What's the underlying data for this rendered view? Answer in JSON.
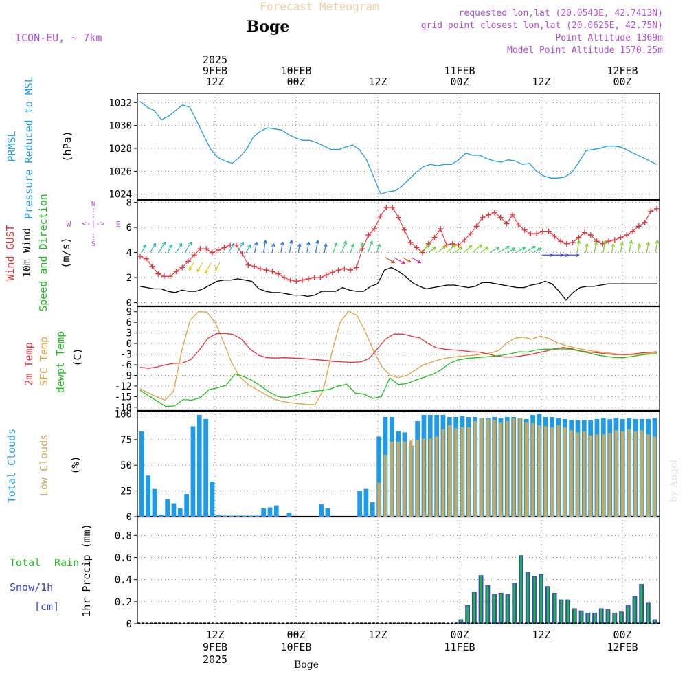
{
  "header": {
    "product_title": "Forecast Meteogram",
    "location": "Boge",
    "model": "ICON-EU, ~ 7km",
    "requested": "requested lon,lat (20.0543E, 42.7413N)",
    "grid_point": "grid point closest lon,lat (20.0625E, 42.75N)",
    "point_altitude": "Point Altitude 1369m",
    "model_altitude": "Model Point Altitude 1570.25m",
    "footer_location": "Boge",
    "watermark": "by Angel"
  },
  "colors": {
    "pressure": "#1e9be8",
    "gust": "#e8303a",
    "wind": "#000000",
    "direction": "#19b919",
    "temp2m": "#e8303a",
    "sfc": "#d9a43c",
    "dewpt": "#1bc21b",
    "total_clouds": "#1e9be8",
    "low_clouds": "#c9a95e",
    "rain": "#1bc21b",
    "snow": "#3a43d8",
    "wind_legend": "#b04fd6"
  },
  "time_axis": {
    "top_labels": [
      {
        "line1": "2025",
        "line2": "9FEB",
        "line3": "12Z"
      },
      {
        "line1": "",
        "line2": "10FEB",
        "line3": "00Z"
      },
      {
        "line1": "",
        "line2": "",
        "line3": "12Z"
      },
      {
        "line1": "",
        "line2": "11FEB",
        "line3": "00Z"
      },
      {
        "line1": "",
        "line2": "",
        "line3": "12Z"
      },
      {
        "line1": "",
        "line2": "12FEB",
        "line3": "00Z"
      }
    ],
    "bottom_labels": [
      {
        "line1": "12Z",
        "line2": "9FEB",
        "line3": "2025"
      },
      {
        "line1": "00Z",
        "line2": "10FEB",
        "line3": ""
      },
      {
        "line1": "12Z",
        "line2": "",
        "line3": ""
      },
      {
        "line1": "00Z",
        "line2": "11FEB",
        "line3": ""
      },
      {
        "line1": "12Z",
        "line2": "",
        "line3": ""
      },
      {
        "line1": "00Z",
        "line2": "12FEB",
        "line3": ""
      }
    ]
  },
  "panels": {
    "pressure": {
      "label1": "PRMSL",
      "label2": "Pressure Reduced to MSL",
      "unit": "(hPa)"
    },
    "wind": {
      "label_gust": "Wind GUST",
      "label_wind": "10m Wind",
      "label_dir": "Speed and Direction",
      "unit": "(m/s)",
      "compass_n": "N",
      "compass_arrow": "<-|->",
      "compass_s": "S",
      "compass_w": "W",
      "compass_e": "E"
    },
    "temp": {
      "label_t2m": "2m Temp",
      "label_sfc": "SFC Temp",
      "label_dew": "dewpt Temp",
      "unit": "(C)"
    },
    "clouds": {
      "label_total": "Total Clouds",
      "label_low": "Low Clouds",
      "unit": "(%)"
    },
    "precip": {
      "label_total": "Total",
      "label_rain": "Rain",
      "label_snow": "Snow/1h",
      "label_cm": "[cm]",
      "unit": "1hr Precip (mm)"
    }
  },
  "chart_data": [
    {
      "type": "line",
      "name": "PRMSL",
      "x": [
        0,
        1,
        2,
        3,
        4,
        5,
        6,
        7,
        8,
        9,
        10,
        11,
        12,
        13,
        14,
        15,
        16,
        17,
        18,
        19,
        20,
        21,
        22,
        23,
        24,
        25,
        26,
        27,
        28,
        29,
        30,
        31,
        32,
        33,
        34,
        35,
        36,
        37,
        38,
        39,
        40,
        41,
        42,
        43,
        44,
        45,
        46,
        47,
        48,
        49,
        50,
        51,
        52,
        53,
        54,
        55,
        56,
        57,
        58,
        59,
        60,
        61,
        62,
        63
      ],
      "values": [
        1032.1,
        1031.6,
        1031.3,
        1030.5,
        1030.8,
        1031.3,
        1031.8,
        1031.6,
        1030.4,
        1029.1,
        1027.9,
        1027.2,
        1026.9,
        1026.7,
        1027.2,
        1027.9,
        1029.0,
        1029.5,
        1029.8,
        1029.7,
        1029.6,
        1029.2,
        1028.9,
        1028.7,
        1028.7,
        1028.5,
        1028.2,
        1027.9,
        1027.9,
        1028.1,
        1028.3,
        1027.9,
        1027.0,
        1025.5,
        1024.0,
        1024.2,
        1024.3,
        1024.7,
        1025.3,
        1025.9,
        1026.4,
        1026.6,
        1026.5,
        1026.6,
        1026.6,
        1027.0,
        1027.6,
        1027.4,
        1027.4,
        1027.1,
        1026.9,
        1026.8,
        1027.0,
        1026.9,
        1026.6,
        1026.7,
        1026.0,
        1025.6,
        1025.4,
        1025.4,
        1025.5,
        1025.9,
        1026.8,
        1027.8
      ],
      "extra_values": [
        1027.9,
        1028.0,
        1028.2,
        1028.2,
        1028.1,
        1027.8,
        1027.5,
        1027.2,
        1026.9,
        1026.6
      ],
      "ylim": [
        1023.5,
        1032.8
      ],
      "yticks": [
        1024,
        1026,
        1028,
        1030,
        1032
      ]
    },
    {
      "type": "line",
      "name": "Wind",
      "gust": [
        3.7,
        3.5,
        2.9,
        2.3,
        2.1,
        2.1,
        2.5,
        2.8,
        3.3,
        3.8,
        4.3,
        4.3,
        4.0,
        4.2,
        4.4,
        4.6,
        4.6,
        3.9,
        3.0,
        2.9,
        2.7,
        2.6,
        2.5,
        2.3,
        2.0,
        1.8,
        1.7,
        1.8,
        1.9,
        2.0,
        2.0,
        2.2,
        2.4,
        2.6,
        2.7,
        2.6,
        2.8,
        4.3,
        5.4,
        5.9,
        6.9,
        7.6,
        7.6,
        6.8,
        5.8,
        4.8,
        4.4,
        4.0,
        4.7,
        5.2,
        5.9,
        4.6,
        4.7,
        4.6,
        5.0,
        5.5,
        6.1,
        6.8,
        7.0,
        7.2,
        6.8,
        6.3,
        7.0,
        6.2,
        5.8,
        5.5,
        5.5,
        5.7,
        5.7,
        5.3,
        4.9,
        4.7,
        4.8,
        5.2,
        5.6,
        5.4,
        4.9,
        4.7,
        4.9,
        5.0,
        5.2,
        5.4,
        5.7,
        6.1,
        6.4,
        7.3,
        7.5
      ],
      "wind": [
        1.3,
        1.2,
        1.1,
        1.1,
        0.9,
        0.8,
        1.0,
        0.9,
        0.9,
        1.1,
        1.4,
        1.7,
        1.8,
        1.8,
        1.9,
        1.8,
        1.7,
        1.1,
        0.9,
        0.8,
        0.8,
        0.7,
        0.6,
        0.6,
        0.5,
        0.6,
        0.9,
        0.9,
        0.9,
        1.2,
        1.0,
        0.9,
        0.9,
        1.3,
        1.5,
        2.6,
        2.8,
        2.5,
        2.1,
        1.6,
        1.3,
        1.1,
        1.2,
        1.3,
        1.4,
        1.4,
        1.3,
        1.2,
        1.3,
        1.6,
        1.6,
        1.5,
        1.4,
        1.3,
        1.2,
        1.2,
        1.4,
        1.5,
        1.7,
        1.5,
        0.9,
        0.2,
        0.8,
        1.2,
        1.3,
        1.3,
        1.4,
        1.5,
        1.5,
        1.5,
        1.5,
        1.5,
        1.5,
        1.5,
        1.5
      ],
      "ylim": [
        -0.3,
        8.2
      ],
      "yticks": [
        0,
        2,
        4,
        6,
        8
      ]
    },
    {
      "type": "line",
      "name": "Temperature",
      "t2m": [
        -6.7,
        -7.0,
        -6.6,
        -6.0,
        -5.6,
        -5.5,
        -4.5,
        -1.8,
        1.5,
        2.8,
        2.9,
        2.6,
        1.2,
        -1.6,
        -3.3,
        -4.0,
        -4.1,
        -4.0,
        -4.1,
        -4.2,
        -4.4,
        -4.6,
        -4.8,
        -5.1,
        -5.2,
        -5.3,
        -5.2,
        -4.3,
        -1.5,
        1.3,
        2.7,
        2.7,
        2.1,
        1.6,
        0.0,
        -1.2,
        -1.6,
        -1.8,
        -2.0,
        -2.3,
        -2.4,
        -2.9,
        -3.5,
        -3.8,
        -3.8,
        -3.5,
        -3.1,
        -2.6,
        -2.1,
        -1.4,
        -1.1,
        -1.5,
        -2.1,
        -2.4,
        -2.6,
        -2.9,
        -3.1,
        -3.1,
        -3.0,
        -2.7,
        -2.5,
        -2.3
      ],
      "sfc": [
        -12.7,
        -14.0,
        -15.1,
        -16.0,
        -13.5,
        -2.0,
        6.6,
        9.0,
        8.9,
        6.0,
        0.5,
        -5.5,
        -9.5,
        -11.6,
        -13.0,
        -14.3,
        -15.6,
        -16.3,
        -16.7,
        -17.0,
        -17.2,
        -17.3,
        -13.0,
        -2.5,
        6.0,
        9.1,
        8.0,
        3.5,
        -2.0,
        -6.5,
        -9.0,
        -9.6,
        -9.0,
        -7.5,
        -6.0,
        -5.2,
        -4.5,
        -4.0,
        -3.7,
        -3.5,
        -3.3,
        -3.0,
        -2.7,
        -2.0,
        0.2,
        1.5,
        1.8,
        1.2,
        2.1,
        1.5,
        0.3,
        -0.5,
        -1.1,
        -1.6,
        -2.0,
        -2.3,
        -2.6,
        -2.9,
        -3.2,
        -3.2,
        -3.0,
        -2.8,
        -2.6
      ],
      "dewpt": [
        -13.2,
        -14.8,
        -16.3,
        -17.8,
        -17.6,
        -15.8,
        -16.0,
        -15.3,
        -13.0,
        -12.5,
        -11.8,
        -8.6,
        -9.3,
        -10.4,
        -12.0,
        -13.7,
        -15.0,
        -15.3,
        -14.7,
        -14.0,
        -13.5,
        -13.3,
        -12.9,
        -12.0,
        -11.5,
        -14.0,
        -14.3,
        -15.5,
        -15.0,
        -9.7,
        -11.6,
        -11.3,
        -10.3,
        -9.5,
        -8.7,
        -7.3,
        -5.5,
        -4.6,
        -4.2,
        -4.0,
        -3.8,
        -3.6,
        -3.3,
        -2.9,
        -2.3,
        -2.4,
        -1.8,
        -1.6,
        -1.6,
        -1.5,
        -1.6,
        -2.1,
        -2.6,
        -3.2,
        -3.6,
        -3.9,
        -4.0,
        -3.7,
        -3.3,
        -3.0,
        -2.9
      ],
      "ylim": [
        -19.0,
        10.5
      ],
      "yticks": [
        -18,
        -15,
        -12,
        -9,
        -6,
        -3,
        0,
        3,
        6,
        9
      ]
    },
    {
      "type": "bar",
      "name": "Clouds",
      "total": [
        83,
        40,
        27,
        2,
        17,
        13,
        8,
        22,
        88,
        99,
        95,
        34,
        2,
        1,
        1,
        1,
        1,
        1,
        1,
        8,
        9,
        11,
        0,
        4,
        0,
        0,
        0,
        0,
        12,
        8,
        0,
        0,
        0,
        0,
        25,
        27,
        14,
        78,
        97,
        97,
        83,
        82,
        69,
        93,
        99,
        99,
        99,
        99,
        97,
        97,
        98,
        97,
        97,
        96,
        96,
        97,
        96,
        97,
        97,
        96,
        95,
        99,
        100,
        97,
        97,
        96,
        95,
        94,
        94,
        94,
        94,
        95,
        96,
        95,
        96,
        95,
        96,
        95,
        95,
        95,
        96
      ],
      "low": [
        0,
        0,
        0,
        0,
        0,
        0,
        0,
        0,
        0,
        0,
        0,
        0,
        0,
        0,
        0,
        0,
        0,
        0,
        0,
        0,
        0,
        0,
        0,
        0,
        0,
        0,
        0,
        0,
        0,
        0,
        0,
        0,
        0,
        0,
        0,
        0,
        0,
        33,
        60,
        73,
        73,
        73,
        74,
        75,
        76,
        76,
        78,
        85,
        89,
        86,
        87,
        87,
        93,
        96,
        95,
        94,
        92,
        93,
        96,
        96,
        92,
        91,
        89,
        88,
        87,
        89,
        87,
        84,
        82,
        83,
        79,
        80,
        80,
        81,
        84,
        83,
        85,
        83,
        84,
        80,
        78
      ],
      "ylim": [
        0,
        103
      ],
      "yticks": [
        0,
        25,
        50,
        75,
        100
      ]
    },
    {
      "type": "bar",
      "name": "Precip",
      "rain": [
        0.04,
        0.17,
        0.29,
        0.44,
        0.35,
        0.27,
        0.28,
        0.27,
        0.37,
        0.62,
        0.47,
        0.43,
        0.45,
        0.34,
        0.28,
        0.22,
        0.22,
        0.14,
        0.12,
        0.1,
        0.1,
        0.14,
        0.13,
        0.1,
        0.11,
        0.17,
        0.25,
        0.36,
        0.19,
        0.04
      ],
      "ylim": [
        0,
        0.97
      ],
      "yticks": [
        0,
        0.2,
        0.4,
        0.6,
        0.8
      ]
    }
  ]
}
